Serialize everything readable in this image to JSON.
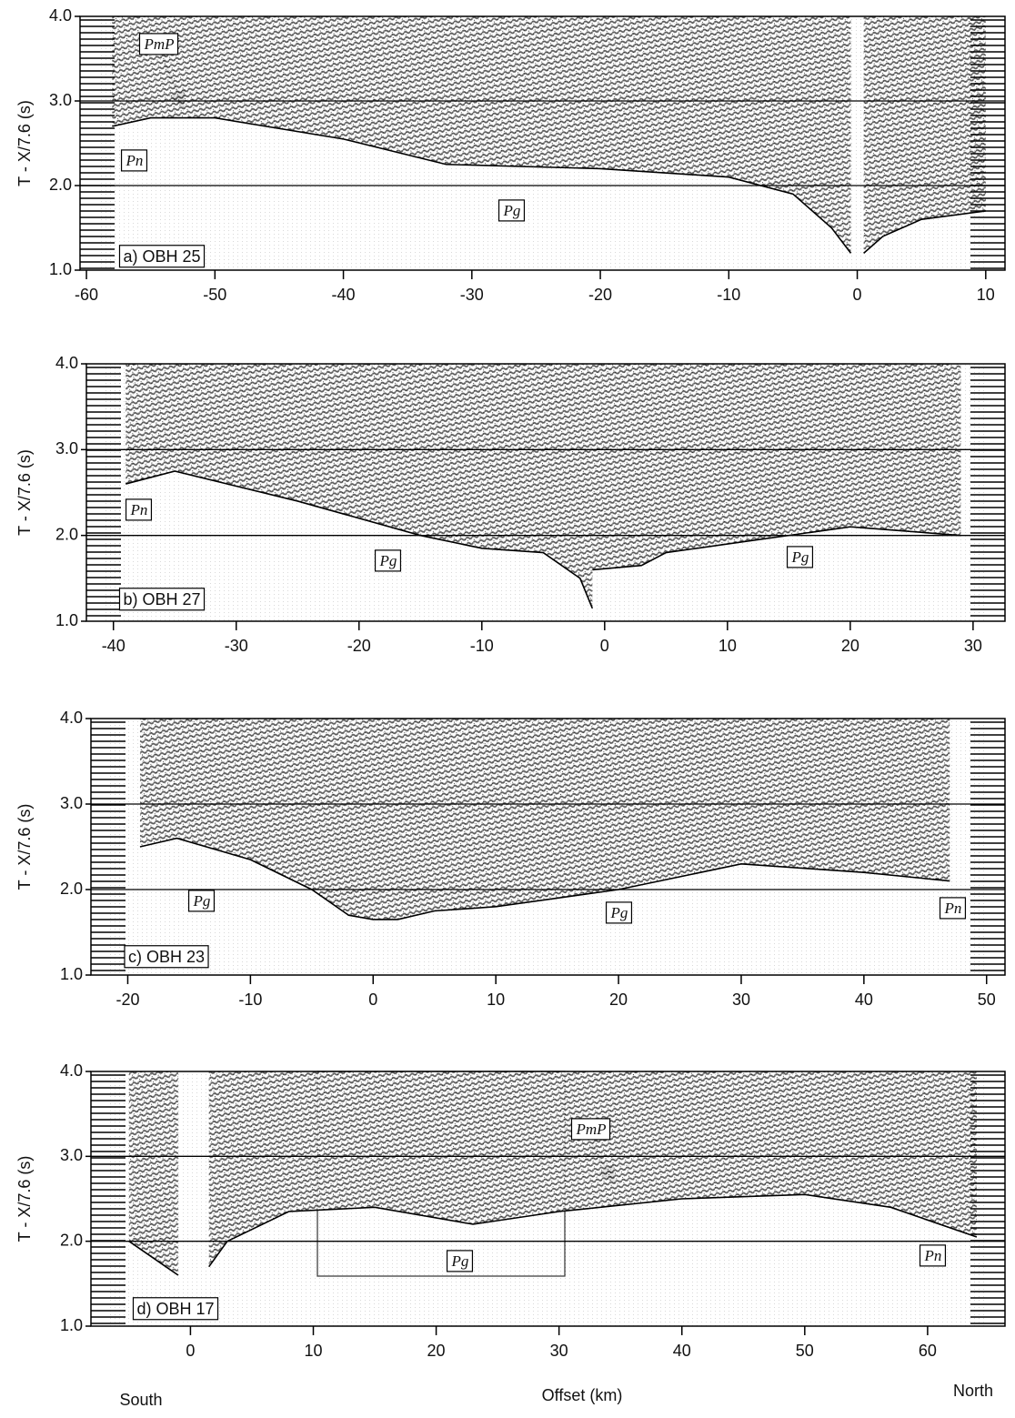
{
  "chart_data": [
    {
      "type": "line",
      "ylabel": "T - X/7.6 (s)",
      "color": "#000000",
      "xlim": [
        -60.5,
        11.5
      ],
      "ylim": [
        1,
        4
      ],
      "xticks": [
        -60,
        -50,
        -40,
        -30,
        -20,
        -10,
        0,
        10
      ],
      "yticks": [
        {
          "value": 1,
          "label": "1.0"
        },
        {
          "value": 2,
          "label": "2.0"
        },
        {
          "value": 3,
          "label": "3.0"
        },
        {
          "value": 4,
          "label": "4.0"
        }
      ],
      "reference_lines": [
        2,
        3
      ],
      "x": [
        -58,
        -55,
        -50,
        -40,
        -32,
        -20,
        -10,
        -5,
        -2,
        -0.5,
        null,
        0.5,
        2,
        5,
        10
      ],
      "values": [
        2.7,
        2.8,
        2.8,
        2.55,
        2.25,
        2.2,
        2.1,
        1.9,
        1.5,
        1.2,
        null,
        1.2,
        1.4,
        1.6,
        1.7
      ],
      "annotations": [
        "PmP",
        "Pn",
        "Pg",
        "a) OBH 25"
      ]
    },
    {
      "type": "line",
      "ylabel": "T - X/7.6 (s)",
      "color": "#000000",
      "xlim": [
        -42.2,
        32.6
      ],
      "ylim": [
        1,
        4
      ],
      "xticks": [
        -40,
        -30,
        -20,
        -10,
        0,
        10,
        20,
        30
      ],
      "yticks": [
        {
          "value": 1,
          "label": "1.0"
        },
        {
          "value": 2,
          "label": "2.0"
        },
        {
          "value": 3,
          "label": "3.0"
        },
        {
          "value": 4,
          "label": "4.0"
        }
      ],
      "reference_lines": [
        2,
        3
      ],
      "x": [
        -39,
        -35,
        -25,
        -15,
        -10,
        -5,
        -2,
        -1,
        null,
        -1,
        3,
        5,
        10,
        20,
        29
      ],
      "values": [
        2.6,
        2.75,
        2.4,
        2.0,
        1.85,
        1.8,
        1.5,
        1.15,
        null,
        1.6,
        1.65,
        1.8,
        1.9,
        2.1,
        2.0
      ],
      "annotations": [
        "Pn",
        "Pg",
        "Pg",
        "b) OBH 27"
      ]
    },
    {
      "type": "line",
      "ylabel": "T - X/7.6 (s)",
      "color": "#000000",
      "xlim": [
        -23,
        51.5
      ],
      "ylim": [
        1,
        4
      ],
      "xticks": [
        -20,
        -10,
        0,
        10,
        20,
        30,
        40,
        50
      ],
      "yticks": [
        {
          "value": 1,
          "label": "1.0"
        },
        {
          "value": 2,
          "label": "2.0"
        },
        {
          "value": 3,
          "label": "3.0"
        },
        {
          "value": 4,
          "label": "4.0"
        }
      ],
      "reference_lines": [
        2,
        3
      ],
      "x": [
        -19,
        -16,
        -10,
        -5,
        -2,
        0,
        2,
        5,
        10,
        20,
        30,
        40,
        47
      ],
      "values": [
        2.5,
        2.6,
        2.35,
        2.0,
        1.7,
        1.65,
        1.65,
        1.75,
        1.8,
        2.0,
        2.3,
        2.2,
        2.1
      ],
      "annotations": [
        "Pg",
        "Pg",
        "Pn",
        "c) OBH 23"
      ]
    },
    {
      "type": "line",
      "ylabel": "T - X/7.6 (s)",
      "color": "#000000",
      "xlim": [
        -8.1,
        66.3
      ],
      "ylim": [
        1,
        4
      ],
      "xticks": [
        0,
        10,
        20,
        30,
        40,
        50,
        60
      ],
      "yticks": [
        {
          "value": 1,
          "label": "1.0"
        },
        {
          "value": 2,
          "label": "2.0"
        },
        {
          "value": 3,
          "label": "3.0"
        },
        {
          "value": 4,
          "label": "4.0"
        }
      ],
      "reference_lines": [
        2,
        3
      ],
      "x": [
        -5,
        -2,
        -1,
        null,
        1.5,
        3,
        8,
        15,
        23,
        30,
        40,
        50,
        57,
        64
      ],
      "values": [
        2.0,
        1.7,
        1.6,
        null,
        1.7,
        2.0,
        2.35,
        2.4,
        2.2,
        2.35,
        2.5,
        2.55,
        2.4,
        2.05
      ],
      "annotations": [
        "PmP",
        "Pg",
        "Pn",
        "d) OBH 17"
      ]
    }
  ],
  "footer": {
    "left": "South",
    "center": "Offset (km)",
    "right": "North"
  }
}
